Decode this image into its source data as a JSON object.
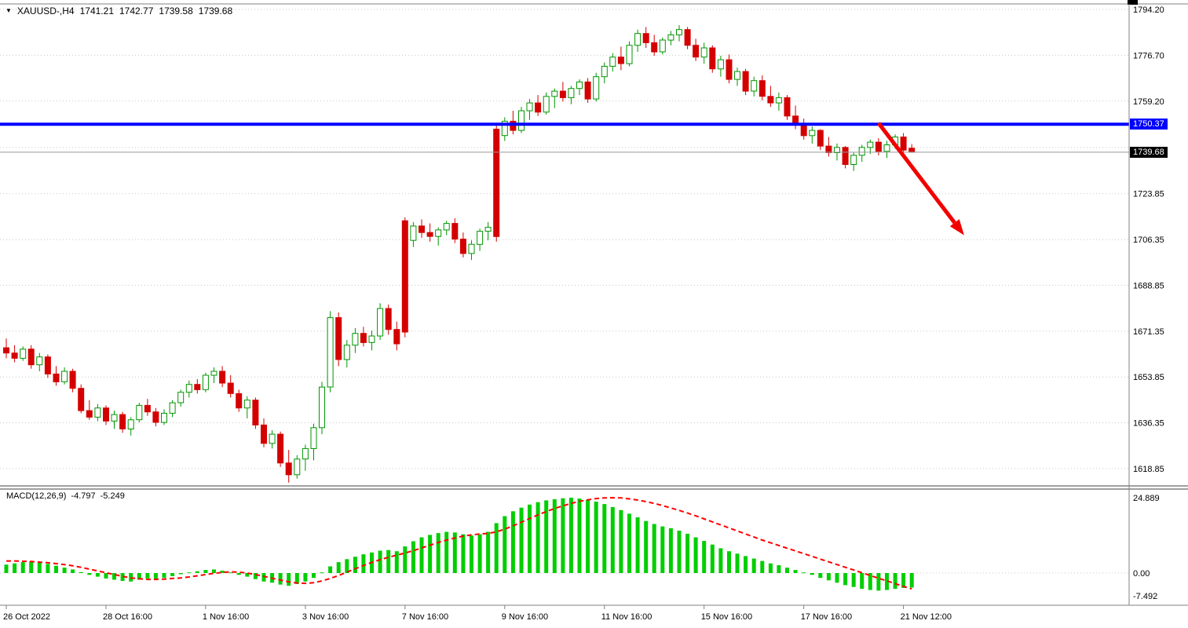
{
  "header": {
    "collapse_icon": "▼",
    "symbol_period": "XAUUSD-,H4",
    "open": "1741.21",
    "high": "1742.77",
    "low": "1739.58",
    "close": "1739.68"
  },
  "price_axis": {
    "tick_labels": [
      "1794.20",
      "1776.70",
      "1759.20",
      "1723.85",
      "1706.35",
      "1688.85",
      "1671.35",
      "1653.85",
      "1636.35",
      "1618.85"
    ],
    "blue_tag": "1750.37",
    "current_tag": "1739.68"
  },
  "macd_panel": {
    "title": "MACD(12,26,9)",
    "value_main": "-4.797",
    "value_signal": "-5.249",
    "tick_labels": [
      "24.889",
      "0.00",
      "-7.492"
    ]
  },
  "time_axis": {
    "labels": [
      "26 Oct 2022",
      "28 Oct 16:00",
      "1 Nov 16:00",
      "3 Nov 16:00",
      "7 Nov 16:00",
      "9 Nov 16:00",
      "11 Nov 16:00",
      "15 Nov 16:00",
      "17 Nov 16:00",
      "21 Nov 12:00"
    ],
    "label_step_bars": 12
  },
  "chart_data": {
    "type": "candlestick",
    "title": "XAUUSD- H4 with MACD(12,26,9)",
    "price_ticks": [
      1794.2,
      1776.7,
      1759.2,
      1723.85,
      1706.35,
      1688.85,
      1671.35,
      1653.85,
      1636.35,
      1618.85
    ],
    "unlabeled_grid": [
      1741.5
    ],
    "ylim": [
      1612,
      1797
    ],
    "hline_price": 1750.37,
    "current_price": 1739.68,
    "arrow": {
      "from_bar": 105,
      "from_price": 1750.8,
      "to_bar": 115.3,
      "to_price": 1708.0
    },
    "candles": [
      [
        1665,
        1668.5,
        1661,
        1663
      ],
      [
        1663,
        1666,
        1659.5,
        1661
      ],
      [
        1661,
        1665.5,
        1660,
        1664.5
      ],
      [
        1664.5,
        1666,
        1657,
        1658.5
      ],
      [
        1658.5,
        1663,
        1656,
        1661.5
      ],
      [
        1661.5,
        1662.5,
        1653.5,
        1655
      ],
      [
        1655,
        1658,
        1650.5,
        1652
      ],
      [
        1652,
        1657.5,
        1651,
        1656
      ],
      [
        1656,
        1657,
        1648,
        1649.5
      ],
      [
        1649.5,
        1651,
        1640,
        1641
      ],
      [
        1641,
        1645,
        1637.5,
        1638.5
      ],
      [
        1638.5,
        1643.5,
        1637,
        1642
      ],
      [
        1642,
        1643,
        1635.5,
        1637
      ],
      [
        1637,
        1641,
        1634,
        1639.5
      ],
      [
        1639.5,
        1640.5,
        1632.5,
        1634
      ],
      [
        1634,
        1638.5,
        1631.5,
        1637.5
      ],
      [
        1637.5,
        1644,
        1636.5,
        1643
      ],
      [
        1643,
        1645.5,
        1639,
        1640.5
      ],
      [
        1640.5,
        1642,
        1635,
        1636.5
      ],
      [
        1636.5,
        1641.5,
        1635.5,
        1640
      ],
      [
        1640,
        1645,
        1638.5,
        1644
      ],
      [
        1644,
        1649,
        1642.5,
        1648
      ],
      [
        1648,
        1652.5,
        1646,
        1651
      ],
      [
        1651,
        1653,
        1647.5,
        1649
      ],
      [
        1649,
        1655.5,
        1648,
        1654.5
      ],
      [
        1654.5,
        1657.5,
        1651.5,
        1656
      ],
      [
        1656,
        1658,
        1650,
        1651.5
      ],
      [
        1651.5,
        1654.5,
        1646,
        1647.5
      ],
      [
        1647.5,
        1649,
        1640.5,
        1642
      ],
      [
        1642,
        1646.5,
        1638,
        1645
      ],
      [
        1645,
        1646,
        1634,
        1635.5
      ],
      [
        1635.5,
        1638,
        1627,
        1628.5
      ],
      [
        1628.5,
        1633.5,
        1626.5,
        1632
      ],
      [
        1632,
        1633,
        1619.5,
        1621
      ],
      [
        1621,
        1626,
        1613.5,
        1616.5
      ],
      [
        1616.5,
        1624,
        1615,
        1622.5
      ],
      [
        1622.5,
        1628,
        1618,
        1626.5
      ],
      [
        1626.5,
        1636,
        1622,
        1634.5
      ],
      [
        1634.5,
        1652,
        1632,
        1650
      ],
      [
        1650,
        1679,
        1648,
        1676.5
      ],
      [
        1676.5,
        1678.5,
        1658,
        1660.5
      ],
      [
        1660.5,
        1668,
        1657.5,
        1666
      ],
      [
        1666,
        1672.5,
        1663,
        1670.5
      ],
      [
        1670.5,
        1673,
        1665.5,
        1667
      ],
      [
        1667,
        1671.5,
        1664,
        1669.5
      ],
      [
        1669.5,
        1682,
        1668,
        1680
      ],
      [
        1680,
        1681.5,
        1670,
        1672
      ],
      [
        1672,
        1675,
        1664,
        1666.5
      ],
      [
        1713.5,
        1714.8,
        1669,
        1671
      ],
      [
        1706,
        1713,
        1703.5,
        1711.5
      ],
      [
        1711.5,
        1714,
        1707,
        1709
      ],
      [
        1709,
        1712.5,
        1705.5,
        1707.5
      ],
      [
        1707.5,
        1711,
        1704,
        1710
      ],
      [
        1710,
        1713.5,
        1708,
        1712.5
      ],
      [
        1712.5,
        1714.5,
        1705,
        1706.5
      ],
      [
        1706.5,
        1709,
        1699.5,
        1701
      ],
      [
        1701,
        1706,
        1698.5,
        1704.5
      ],
      [
        1704.5,
        1710.5,
        1702,
        1709.5
      ],
      [
        1709.5,
        1713,
        1706,
        1711
      ],
      [
        1748.5,
        1750.5,
        1705.5,
        1707.5
      ],
      [
        1746,
        1753,
        1744,
        1751.5
      ],
      [
        1751.5,
        1755.5,
        1746.5,
        1748
      ],
      [
        1748,
        1757,
        1747,
        1755.5
      ],
      [
        1755.5,
        1760,
        1752,
        1758.5
      ],
      [
        1758.5,
        1761.5,
        1753.5,
        1755
      ],
      [
        1755,
        1762.5,
        1754,
        1761
      ],
      [
        1761,
        1764,
        1756.5,
        1763
      ],
      [
        1763,
        1766.5,
        1759,
        1760.5
      ],
      [
        1760.5,
        1765,
        1758,
        1764
      ],
      [
        1764,
        1767.5,
        1761.5,
        1766.5
      ],
      [
        1766.5,
        1768,
        1758.5,
        1760
      ],
      [
        1760,
        1770,
        1759,
        1768.5
      ],
      [
        1768.5,
        1774,
        1766,
        1772.5
      ],
      [
        1772.5,
        1777.5,
        1770.5,
        1776
      ],
      [
        1776,
        1780,
        1771,
        1773.5
      ],
      [
        1773.5,
        1782,
        1772.5,
        1780.5
      ],
      [
        1780.5,
        1786.5,
        1778,
        1785
      ],
      [
        1785,
        1787.5,
        1779.5,
        1781.5
      ],
      [
        1781.5,
        1784.5,
        1776.5,
        1778
      ],
      [
        1778,
        1783.5,
        1777,
        1782.5
      ],
      [
        1782.5,
        1786,
        1780.5,
        1784.5
      ],
      [
        1784.5,
        1788.2,
        1782,
        1786.5
      ],
      [
        1786.5,
        1787.5,
        1779,
        1780.5
      ],
      [
        1780.5,
        1783,
        1774.5,
        1776
      ],
      [
        1776,
        1781.5,
        1773.5,
        1779.5
      ],
      [
        1779.5,
        1780.5,
        1770,
        1771.5
      ],
      [
        1771.5,
        1776.5,
        1768.5,
        1775
      ],
      [
        1775,
        1777,
        1766,
        1767.5
      ],
      [
        1767.5,
        1772,
        1765,
        1770.5
      ],
      [
        1770.5,
        1771.5,
        1761.5,
        1763
      ],
      [
        1763,
        1768.5,
        1761,
        1767
      ],
      [
        1767,
        1769,
        1759.5,
        1761
      ],
      [
        1761,
        1765,
        1757,
        1758.5
      ],
      [
        1758.5,
        1762.5,
        1755.5,
        1760.5
      ],
      [
        1760.5,
        1761.5,
        1752,
        1753.5
      ],
      [
        1753.5,
        1757.5,
        1748.5,
        1750
      ],
      [
        1750,
        1752.5,
        1744.5,
        1746
      ],
      [
        1746,
        1749.5,
        1743,
        1748
      ],
      [
        1748,
        1748.5,
        1740.5,
        1742
      ],
      [
        1742,
        1745.5,
        1738,
        1739.5
      ],
      [
        1739.5,
        1743,
        1736.5,
        1741.5
      ],
      [
        1741.5,
        1742,
        1733.5,
        1735
      ],
      [
        1735,
        1739.5,
        1732.5,
        1738.5
      ],
      [
        1738.5,
        1742.5,
        1736,
        1741.5
      ],
      [
        1741.5,
        1744.5,
        1739,
        1743.5
      ],
      [
        1743.5,
        1745,
        1738.5,
        1740
      ],
      [
        1740,
        1744,
        1737.5,
        1742.5
      ],
      [
        1742.5,
        1746.5,
        1741,
        1745.5
      ],
      [
        1745.5,
        1747,
        1739,
        1740.5
      ],
      [
        1741.21,
        1742.77,
        1739.58,
        1739.68
      ]
    ],
    "macd": {
      "ticks": [
        24.889,
        0.0,
        -7.492
      ],
      "ylim": [
        -9,
        26
      ],
      "histogram": [
        2.8,
        3.2,
        3.6,
        3.8,
        3.5,
        3.0,
        2.4,
        1.8,
        1.2,
        0.3,
        -0.6,
        -1.2,
        -1.8,
        -2.2,
        -2.6,
        -2.8,
        -2.2,
        -1.8,
        -2.0,
        -1.6,
        -1.0,
        -0.4,
        0.2,
        0.6,
        1.0,
        1.2,
        0.8,
        0.2,
        -0.6,
        -1.2,
        -2.0,
        -2.8,
        -3.2,
        -3.8,
        -4.2,
        -3.6,
        -2.8,
        -1.6,
        0.2,
        2.2,
        3.6,
        4.6,
        5.4,
        6.2,
        6.8,
        7.4,
        7.6,
        7.2,
        8.8,
        10.5,
        11.8,
        12.6,
        13.2,
        13.6,
        13.4,
        12.8,
        12.4,
        12.8,
        13.6,
        16.5,
        18.8,
        20.4,
        21.6,
        22.6,
        23.4,
        24.0,
        24.4,
        24.7,
        24.889,
        24.6,
        24.2,
        23.6,
        22.8,
        21.8,
        20.8,
        19.6,
        18.4,
        17.2,
        16.2,
        15.4,
        14.8,
        14.0,
        13.0,
        11.8,
        10.6,
        9.4,
        8.2,
        7.2,
        6.4,
        5.6,
        4.8,
        4.0,
        3.2,
        2.6,
        1.8,
        1.0,
        0.2,
        -0.6,
        -1.6,
        -2.4,
        -3.2,
        -4.0,
        -4.6,
        -5.2,
        -5.6,
        -5.8,
        -5.6,
        -5.2,
        -4.9,
        -4.797
      ],
      "signal": [
        4.0,
        4.0,
        3.9,
        3.8,
        3.6,
        3.4,
        3.1,
        2.8,
        2.4,
        1.9,
        1.3,
        0.7,
        0.1,
        -0.5,
        -1.1,
        -1.6,
        -1.9,
        -2.1,
        -2.1,
        -2.0,
        -1.8,
        -1.6,
        -1.3,
        -0.9,
        -0.5,
        -0.1,
        0.2,
        0.4,
        0.3,
        0.0,
        -0.5,
        -1.1,
        -1.7,
        -2.3,
        -2.9,
        -3.3,
        -3.4,
        -3.2,
        -2.6,
        -1.8,
        -0.8,
        0.3,
        1.4,
        2.5,
        3.5,
        4.4,
        5.2,
        5.9,
        6.6,
        7.4,
        8.3,
        9.2,
        10.1,
        10.9,
        11.6,
        12.2,
        12.6,
        12.9,
        13.1,
        13.6,
        14.5,
        15.6,
        16.8,
        18.0,
        19.2,
        20.3,
        21.3,
        22.2,
        23.0,
        23.7,
        24.2,
        24.6,
        24.8,
        24.9,
        24.8,
        24.5,
        24.1,
        23.6,
        23.0,
        22.3,
        21.5,
        20.7,
        19.8,
        18.9,
        17.9,
        16.9,
        15.9,
        14.9,
        13.9,
        12.9,
        11.9,
        10.9,
        10.0,
        9.1,
        8.2,
        7.3,
        6.4,
        5.5,
        4.6,
        3.7,
        2.8,
        1.9,
        1.0,
        0.1,
        -0.8,
        -1.7,
        -2.6,
        -3.5,
        -4.4,
        -5.249
      ]
    },
    "colors": {
      "background": "#FFFFFF",
      "grid": "#C8C8C8",
      "bull_body": "#FFFFFF",
      "bull_border": "#009600",
      "bear": "#D40000",
      "macd_hist": "#00CE00",
      "macd_signal": "#FF0000",
      "hline": "#0000FF",
      "arrow": "#F20000",
      "axis_text": "#000000",
      "current_price_line": "#999999",
      "separator": "#808080",
      "tag_blue_bg": "#0000FF",
      "tag_black_bg": "#000000"
    }
  }
}
